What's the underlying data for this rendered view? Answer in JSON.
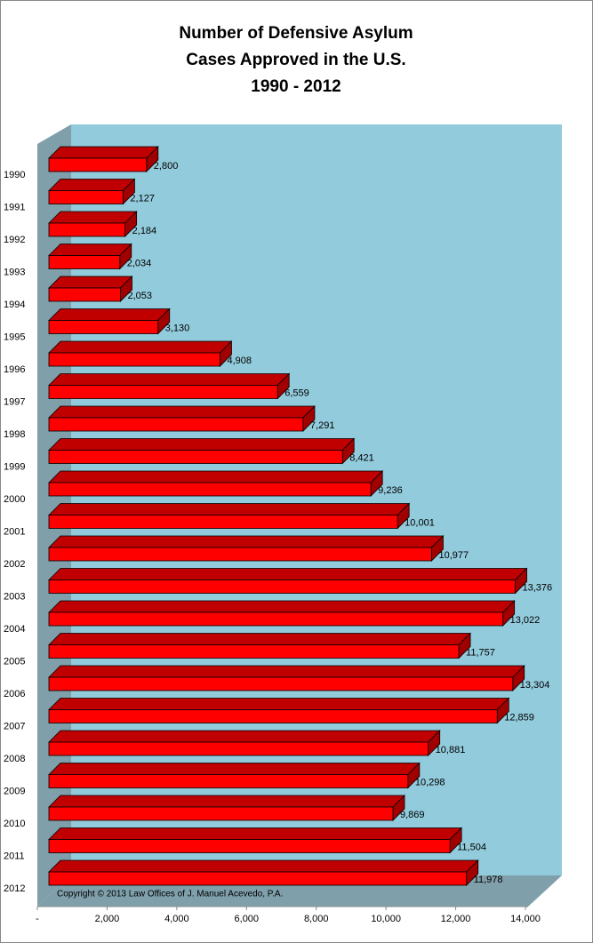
{
  "chart_data": {
    "type": "bar3d-horizontal",
    "title": [
      "Number of Defensive Asylum",
      "Cases Approved in the U.S.",
      "1990 - 2012"
    ],
    "categories": [
      "1990",
      "1991",
      "1992",
      "1993",
      "1994",
      "1995",
      "1996",
      "1997",
      "1998",
      "1999",
      "2000",
      "2001",
      "2002",
      "2003",
      "2004",
      "2005",
      "2006",
      "2007",
      "2008",
      "2009",
      "2010",
      "2011",
      "2012"
    ],
    "values": [
      2800,
      2127,
      2184,
      2034,
      2053,
      3130,
      4908,
      6559,
      7291,
      8421,
      9236,
      10001,
      10977,
      13376,
      13022,
      11757,
      13304,
      12859,
      10881,
      10298,
      9869,
      11504,
      11978
    ],
    "value_labels": [
      "2,800",
      "2,127",
      "2,184",
      "2,034",
      "2,053",
      "3,130",
      "4,908",
      "6,559",
      "7,291",
      "8,421",
      "9,236",
      "10,001",
      "10,977",
      "13,376",
      "13,022",
      "11,757",
      "13,304",
      "12,859",
      "10,881",
      "10,298",
      "9,869",
      "11,504",
      "11,978"
    ],
    "color": "#ff0000",
    "xlim": [
      0,
      14000
    ],
    "xticks": [
      {
        "value": 0,
        "label": "-"
      },
      {
        "value": 2000,
        "label": "2,000"
      },
      {
        "value": 4000,
        "label": "4,000"
      },
      {
        "value": 6000,
        "label": "6,000"
      },
      {
        "value": 8000,
        "label": "8,000"
      },
      {
        "value": 10000,
        "label": "10,000"
      },
      {
        "value": 12000,
        "label": "12,000"
      },
      {
        "value": 14000,
        "label": "14,000"
      }
    ],
    "annotation": "Copyright © 2013 Law Offices of J. Manuel Acevedo, P.A."
  }
}
